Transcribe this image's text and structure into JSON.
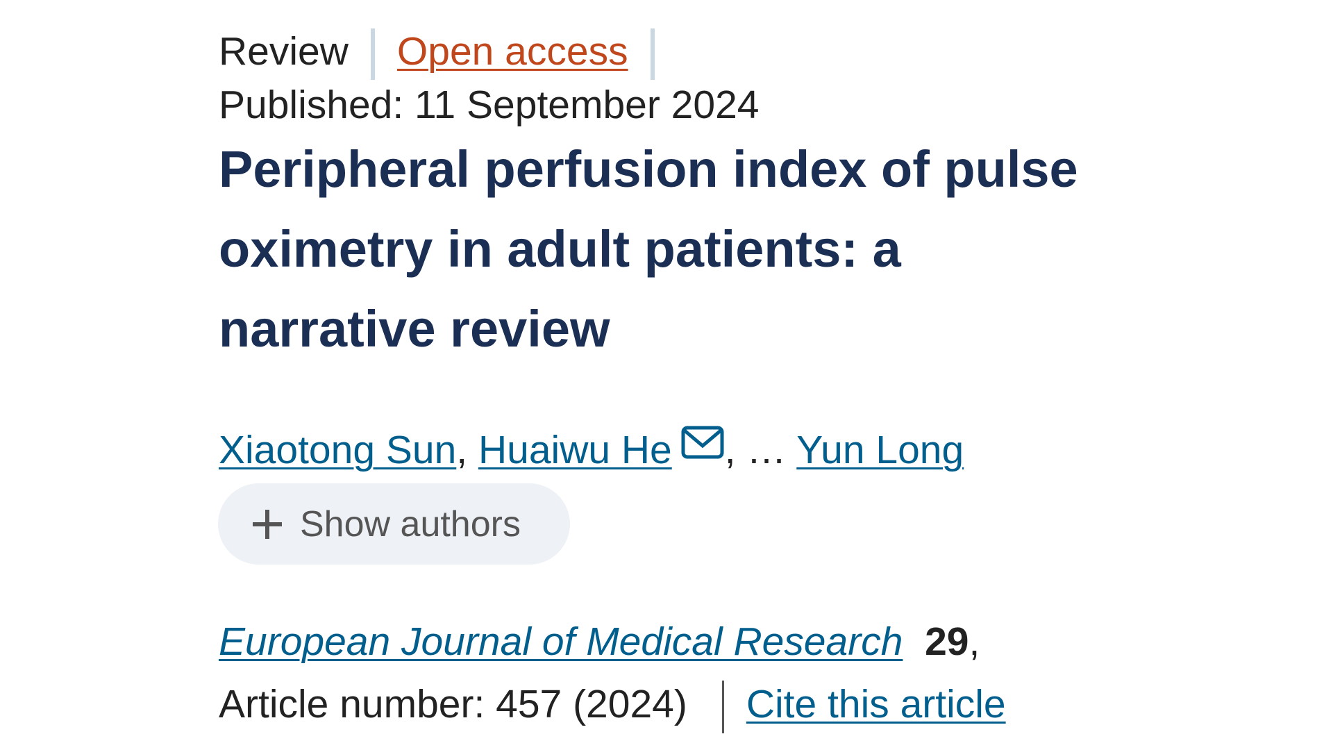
{
  "header": {
    "article_type": "Review",
    "access": "Open access",
    "published": "Published: 11 September 2024"
  },
  "title": "Peripheral perfusion index of pulse oximetry in adult patients: a narrative review",
  "authors": {
    "names": [
      "Xiaotong Sun",
      "Huaiwu He",
      "Yun Long"
    ],
    "comma": ",",
    "ellipsis": ", …",
    "show_button": "Show authors"
  },
  "citation": {
    "journal": "European Journal of Medical Research",
    "volume": "29",
    "comma": ",",
    "article_number": "Article number: 457 (2024)",
    "cite_link": "Cite this article"
  }
}
